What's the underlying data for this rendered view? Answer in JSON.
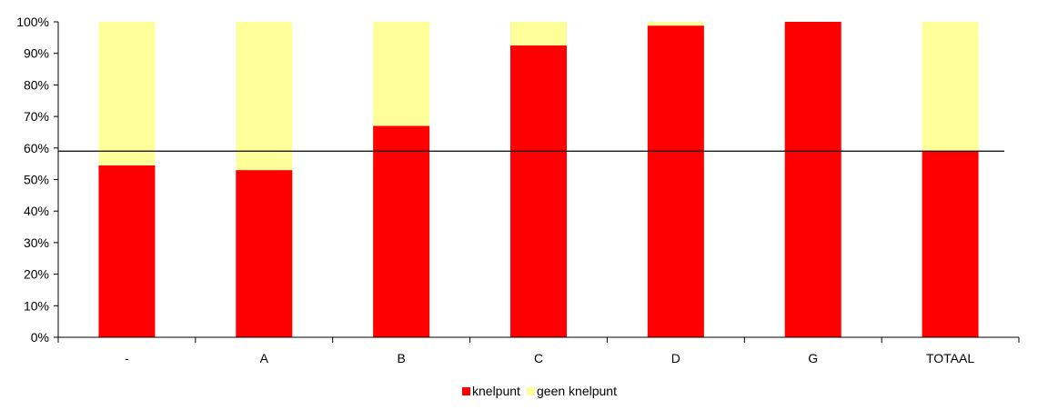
{
  "chart_data": {
    "type": "bar",
    "stacked": true,
    "normalized": true,
    "categories": [
      "-",
      "A",
      "B",
      "C",
      "D",
      "G",
      "TOTAAL"
    ],
    "series": [
      {
        "name": "knelpunt",
        "color": "#ff0000",
        "values": [
          0.545,
          0.53,
          0.67,
          0.925,
          0.988,
          1.0,
          0.59
        ]
      },
      {
        "name": "geen knelpunt",
        "color": "#ffff99",
        "values": [
          0.455,
          0.47,
          0.33,
          0.075,
          0.012,
          0.0,
          0.41
        ]
      }
    ],
    "y_ticks": [
      "0%",
      "10%",
      "20%",
      "30%",
      "40%",
      "50%",
      "60%",
      "70%",
      "80%",
      "90%",
      "100%"
    ],
    "ylim": [
      0,
      1
    ],
    "reference_line": {
      "value": 0.59,
      "color": "#000000"
    },
    "title": "",
    "xlabel": "",
    "ylabel": "",
    "grid": false,
    "legend_position": "bottom"
  }
}
